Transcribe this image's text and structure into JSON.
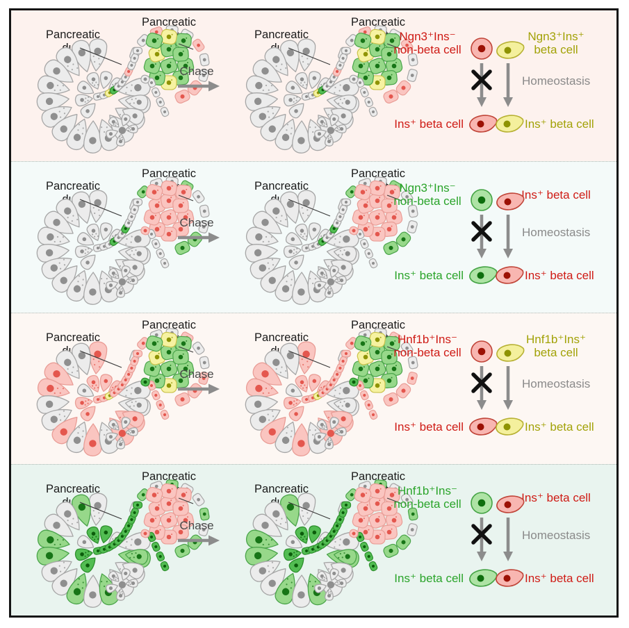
{
  "palette": {
    "gray": {
      "fill": "#ececec",
      "stroke": "#a6a6a6",
      "nucleus": "#8f8f8f"
    },
    "pink": {
      "fill": "#fac5c0",
      "stroke": "#e99d96",
      "nucleus": "#e4574e"
    },
    "green": {
      "fill": "#97d88a",
      "stroke": "#4aa44a",
      "nucleus": "#177517"
    },
    "dgreen": {
      "fill": "#52bd52",
      "stroke": "#2e8f2e",
      "nucleus": "#0b5c0b"
    },
    "yellow": {
      "fill": "#f6f2a1",
      "stroke": "#c9c24a",
      "nucleus": "#8f9405"
    }
  },
  "legend_palette": {
    "red": {
      "fill": "#f8b6b1",
      "stroke": "#c04438",
      "nucleus": "#9c1105"
    },
    "yellow": {
      "fill": "#f4f09d",
      "stroke": "#b7b133",
      "nucleus": "#8e9303"
    },
    "green": {
      "fill": "#aee3a5",
      "stroke": "#44a344",
      "nucleus": "#0e6e0e"
    }
  },
  "rows": [
    {
      "bg": "#fdf2ee",
      "duct_label": [
        "Pancreatic",
        "duct"
      ],
      "islet_label": [
        "Pancreatic",
        "islet"
      ],
      "chase": "Chase",
      "legend": {
        "top_left": {
          "lines": [
            "Ngn3⁺Ins⁻",
            "non-beta cell"
          ],
          "color": "#cf1b15",
          "cell_color": "red",
          "shape": "round"
        },
        "top_right": {
          "lines": [
            "Ngn3⁺Ins⁺",
            "beta cell"
          ],
          "color": "#a2a207",
          "cell_color": "yellow",
          "shape": "teardrop"
        },
        "homeostasis": "Homeostasis",
        "bottom_left": {
          "label": "Ins⁺ beta cell",
          "color": "#cf1b15",
          "cell_color": "red",
          "shape": "teardrop"
        },
        "bottom_right": {
          "label": "Ins⁺ beta cell",
          "color": "#a2a207",
          "cell_color": "yellow",
          "shape": "teardrop"
        }
      },
      "tissue": {
        "acinar": [
          "gray",
          "gray",
          "gray",
          "gray",
          "gray",
          "gray",
          "gray",
          "gray",
          "gray",
          "gray",
          "gray",
          "gray",
          "gray",
          "gray",
          "gray",
          "gray",
          "gray",
          "gray",
          "gray",
          "gray",
          "gray",
          "gray",
          "gray",
          "gray",
          "gray",
          "gray",
          "gray",
          "gray"
        ],
        "duct": [
          "gray",
          "gray",
          "yellow",
          "dgreen",
          "gray",
          "gray",
          "gray",
          "pink",
          "gray",
          "gray",
          "gray"
        ],
        "duct_branch": [
          "gray",
          "gray",
          "gray",
          "gray"
        ],
        "junction": "gray",
        "islet_core": [
          "green",
          "green",
          "green",
          "yellow",
          "green",
          "green",
          "yellow",
          "green",
          "green",
          "green",
          "yellow",
          "green"
        ],
        "islet_rim": [
          "gray",
          "gray",
          "pink",
          "gray",
          "gray",
          "pink",
          "gray",
          "gray",
          "pink",
          "pink"
        ]
      }
    },
    {
      "bg": "#f4faf9",
      "duct_label": [
        "Pancreatic",
        "duct"
      ],
      "islet_label": [
        "Pancreatic",
        "islet"
      ],
      "chase": "Chase",
      "legend": {
        "top_left": {
          "lines": [
            "Ngn3⁺Ins⁻",
            "non-beta cell"
          ],
          "color": "#2aa42a",
          "cell_color": "green",
          "shape": "round"
        },
        "top_right": {
          "lines": [
            "Ins⁺ beta cell"
          ],
          "color": "#cf1b15",
          "cell_color": "red",
          "shape": "teardrop"
        },
        "homeostasis": "Homeostasis",
        "bottom_left": {
          "label": "Ins⁺ beta cell",
          "color": "#2aa42a",
          "cell_color": "green",
          "shape": "teardrop"
        },
        "bottom_right": {
          "label": "Ins⁺ beta cell",
          "color": "#cf1b15",
          "cell_color": "red",
          "shape": "teardrop"
        }
      },
      "tissue": {
        "acinar": [
          "gray",
          "gray",
          "gray",
          "gray",
          "gray",
          "gray",
          "gray",
          "gray",
          "gray",
          "gray",
          "gray",
          "gray",
          "gray",
          "gray",
          "gray",
          "gray",
          "gray",
          "gray",
          "gray",
          "gray",
          "gray",
          "gray",
          "gray",
          "gray",
          "gray",
          "gray",
          "gray",
          "gray"
        ],
        "duct": [
          "gray",
          "gray",
          "gray",
          "dgreen",
          "gray",
          "gray",
          "dgreen",
          "gray",
          "gray",
          "gray",
          "gray"
        ],
        "duct_branch": [
          "gray",
          "gray",
          "gray",
          "gray"
        ],
        "junction": "pink",
        "islet_core": [
          "pink",
          "pink",
          "pink",
          "pink",
          "pink",
          "pink",
          "pink",
          "pink",
          "pink",
          "pink",
          "pink",
          "pink"
        ],
        "islet_rim": [
          "gray",
          "green",
          "gray",
          "gray",
          "green",
          "gray",
          "gray",
          "gray",
          "green",
          "green"
        ]
      }
    },
    {
      "bg": "#fdf7f3",
      "duct_label": [
        "Pancreatic",
        "duct"
      ],
      "islet_label": [
        "Pancreatic",
        "islet"
      ],
      "chase": "Chase",
      "legend": {
        "top_left": {
          "lines": [
            "Hnf1b⁺Ins⁻",
            "non-beta cell"
          ],
          "color": "#cf1b15",
          "cell_color": "red",
          "shape": "round"
        },
        "top_right": {
          "lines": [
            "Hnf1b⁺Ins⁺",
            "beta cell"
          ],
          "color": "#a2a207",
          "cell_color": "yellow",
          "shape": "teardrop"
        },
        "homeostasis": "Homeostasis",
        "bottom_left": {
          "label": "Ins⁺ beta cell",
          "color": "#cf1b15",
          "cell_color": "red",
          "shape": "teardrop"
        },
        "bottom_right": {
          "label": "Ins⁺ beta cell",
          "color": "#a2a207",
          "cell_color": "yellow",
          "shape": "teardrop"
        }
      },
      "tissue": {
        "acinar": [
          "pink",
          "gray",
          "gray",
          "pink",
          "pink",
          "gray",
          "gray",
          "pink",
          "gray",
          "pink",
          "gray",
          "pink",
          "pink",
          "gray",
          "gray",
          "pink",
          "pink",
          "gray",
          "pink",
          "pink",
          "pink",
          "gray",
          "pink",
          "gray",
          "gray",
          "gray",
          "gray",
          "gray"
        ],
        "duct": [
          "pink",
          "pink",
          "yellow",
          "pink",
          "pink",
          "pink",
          "pink",
          "pink",
          "pink",
          "pink",
          "pink"
        ],
        "duct_branch": [
          "pink",
          "pink",
          "pink",
          "pink"
        ],
        "junction": "dgreen",
        "islet_core": [
          "green",
          "green",
          "green",
          "yellow",
          "green",
          "green",
          "yellow",
          "green",
          "green",
          "green",
          "yellow",
          "green"
        ],
        "islet_rim": [
          "gray",
          "pink",
          "gray",
          "gray",
          "pink",
          "gray",
          "gray",
          "pink",
          "pink",
          "pink"
        ]
      }
    },
    {
      "bg": "#e9f4ef",
      "duct_label": [
        "Pancreatic",
        "duct"
      ],
      "islet_label": [
        "Pancreatic",
        "islet"
      ],
      "chase": "Chase",
      "legend": {
        "top_left": {
          "lines": [
            "Hnf1b⁺Ins⁻",
            "non-beta cell"
          ],
          "color": "#2aa42a",
          "cell_color": "green",
          "shape": "round"
        },
        "top_right": {
          "lines": [
            "Ins⁺ beta cell"
          ],
          "color": "#cf1b15",
          "cell_color": "red",
          "shape": "teardrop"
        },
        "homeostasis": "Homeostasis",
        "bottom_left": {
          "label": "Ins⁺ beta cell",
          "color": "#2aa42a",
          "cell_color": "green",
          "shape": "teardrop"
        },
        "bottom_right": {
          "label": "Ins⁺ beta cell",
          "color": "#cf1b15",
          "cell_color": "red",
          "shape": "teardrop"
        }
      },
      "tissue": {
        "acinar": [
          "gray",
          "green",
          "gray",
          "gray",
          "green",
          "green",
          "gray",
          "gray",
          "green",
          "gray",
          "green",
          "gray",
          "gray",
          "green",
          "gray",
          "dgreen",
          "dgreen",
          "gray",
          "dgreen",
          "dgreen",
          "gray",
          "green",
          "gray",
          "gray",
          "gray",
          "gray",
          "gray",
          "gray"
        ],
        "duct": [
          "dgreen",
          "dgreen",
          "dgreen",
          "dgreen",
          "dgreen",
          "dgreen",
          "dgreen",
          "dgreen",
          "dgreen",
          "dgreen",
          "dgreen"
        ],
        "duct_branch": [
          "dgreen",
          "dgreen",
          "dgreen",
          "dgreen"
        ],
        "junction": "pink",
        "islet_core": [
          "pink",
          "pink",
          "pink",
          "pink",
          "pink",
          "pink",
          "pink",
          "pink",
          "pink",
          "pink",
          "pink",
          "pink"
        ],
        "islet_rim": [
          "gray",
          "green",
          "gray",
          "green",
          "gray",
          "gray",
          "green",
          "gray",
          "green",
          "green"
        ]
      }
    }
  ]
}
